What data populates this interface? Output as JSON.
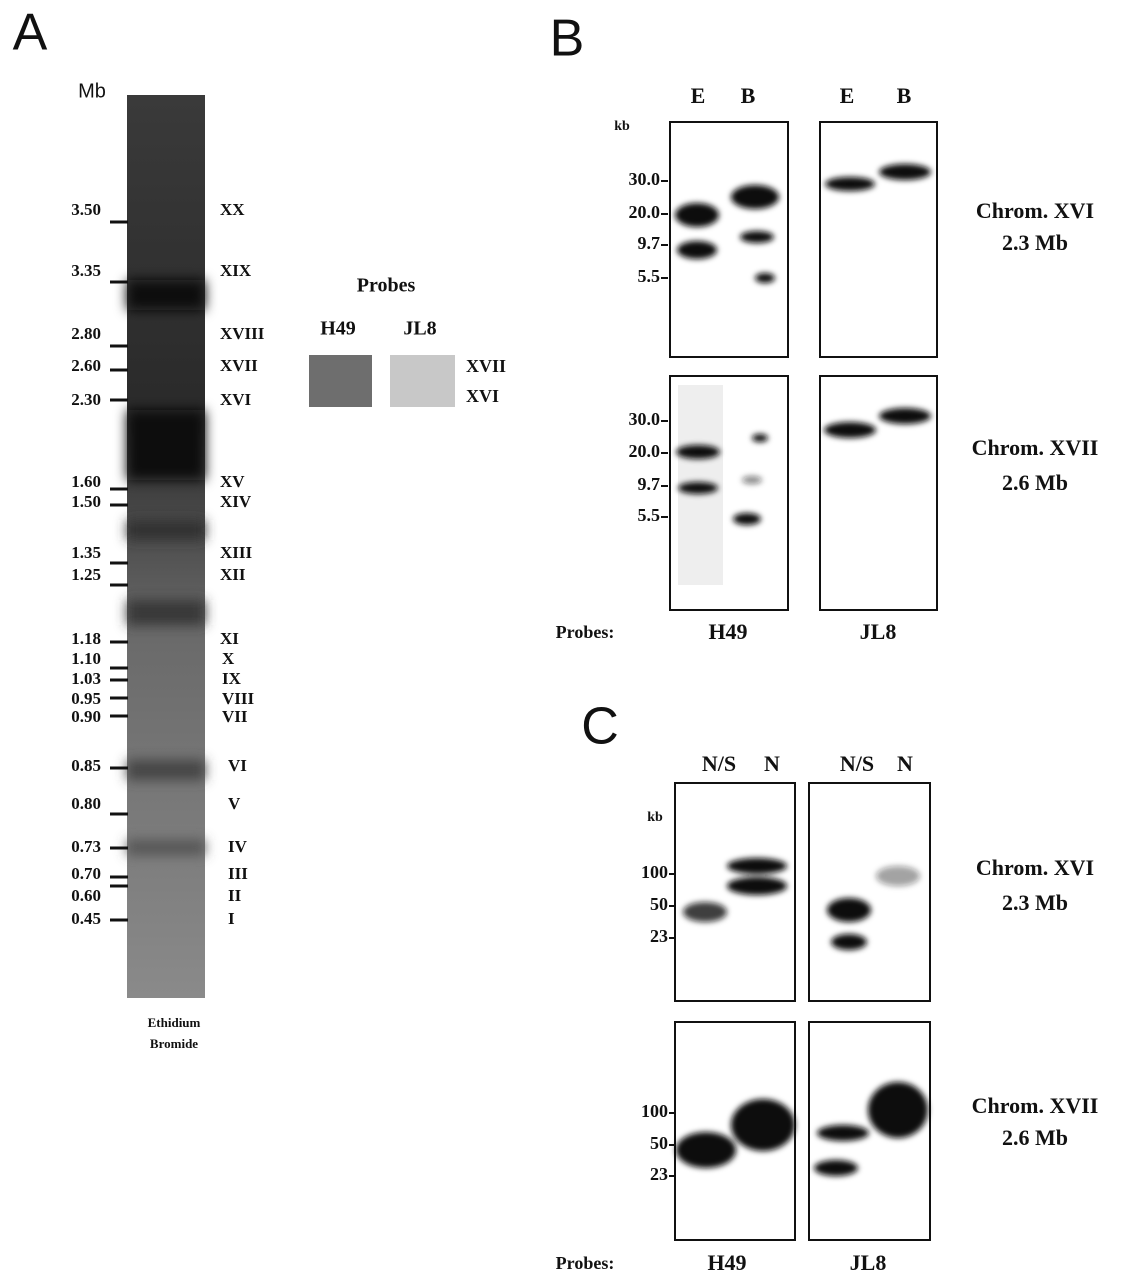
{
  "panel_a": {
    "letter": "A",
    "unit": "Mb",
    "markers": [
      {
        "size": "3.50",
        "chrom": "XX"
      },
      {
        "size": "3.35",
        "chrom": "XIX"
      },
      {
        "size": "2.80",
        "chrom": "XVIII"
      },
      {
        "size": "2.60",
        "chrom": "XVII"
      },
      {
        "size": "2.30",
        "chrom": "XVI"
      },
      {
        "size": "1.60",
        "chrom": "XV"
      },
      {
        "size": "1.50",
        "chrom": "XIV"
      },
      {
        "size": "1.35",
        "chrom": "XIII"
      },
      {
        "size": "1.25",
        "chrom": "XII"
      },
      {
        "size": "1.18",
        "chrom": "XI"
      },
      {
        "size": "1.10",
        "chrom": "X"
      },
      {
        "size": "1.03",
        "chrom": "IX"
      },
      {
        "size": "0.95",
        "chrom": "VIII"
      },
      {
        "size": "0.90",
        "chrom": "VII"
      },
      {
        "size": "0.85",
        "chrom": "VI"
      },
      {
        "size": "0.80",
        "chrom": "V"
      },
      {
        "size": "0.73",
        "chrom": "IV"
      },
      {
        "size": "0.70",
        "chrom": "III"
      },
      {
        "size": "0.60",
        "chrom": "II"
      },
      {
        "size": "0.45",
        "chrom": "I"
      }
    ],
    "stain": [
      "Ethidium",
      "Bromide"
    ],
    "probes": {
      "title": "Probes",
      "names": [
        "H49",
        "JL8"
      ],
      "chroms": [
        "XVII",
        "XVI"
      ]
    }
  },
  "panel_b": {
    "letter": "B",
    "lanes": [
      "E",
      "B",
      "E",
      "B"
    ],
    "unit": "kb",
    "rows": [
      {
        "sizes": [
          "30.0",
          "20.0",
          "9.7",
          "5.5"
        ],
        "label": [
          "Chrom. XVI",
          "2.3 Mb"
        ]
      },
      {
        "sizes": [
          "30.0",
          "20.0",
          "9.7",
          "5.5"
        ],
        "label": [
          "Chrom. XVII",
          "2.6 Mb"
        ]
      }
    ],
    "probes_label": "Probes:",
    "probes": [
      "H49",
      "JL8"
    ]
  },
  "panel_c": {
    "letter": "C",
    "lanes": [
      "N/S",
      "N",
      "N/S",
      "N"
    ],
    "unit": "kb",
    "rows": [
      {
        "sizes": [
          "100",
          "50",
          "23"
        ],
        "label": [
          "Chrom. XVI",
          "2.3 Mb"
        ]
      },
      {
        "sizes": [
          "100",
          "50",
          "23"
        ],
        "label": [
          "Chrom. XVII",
          "2.6 Mb"
        ]
      }
    ],
    "probes_label": "Probes:",
    "probes": [
      "H49",
      "JL8"
    ]
  }
}
